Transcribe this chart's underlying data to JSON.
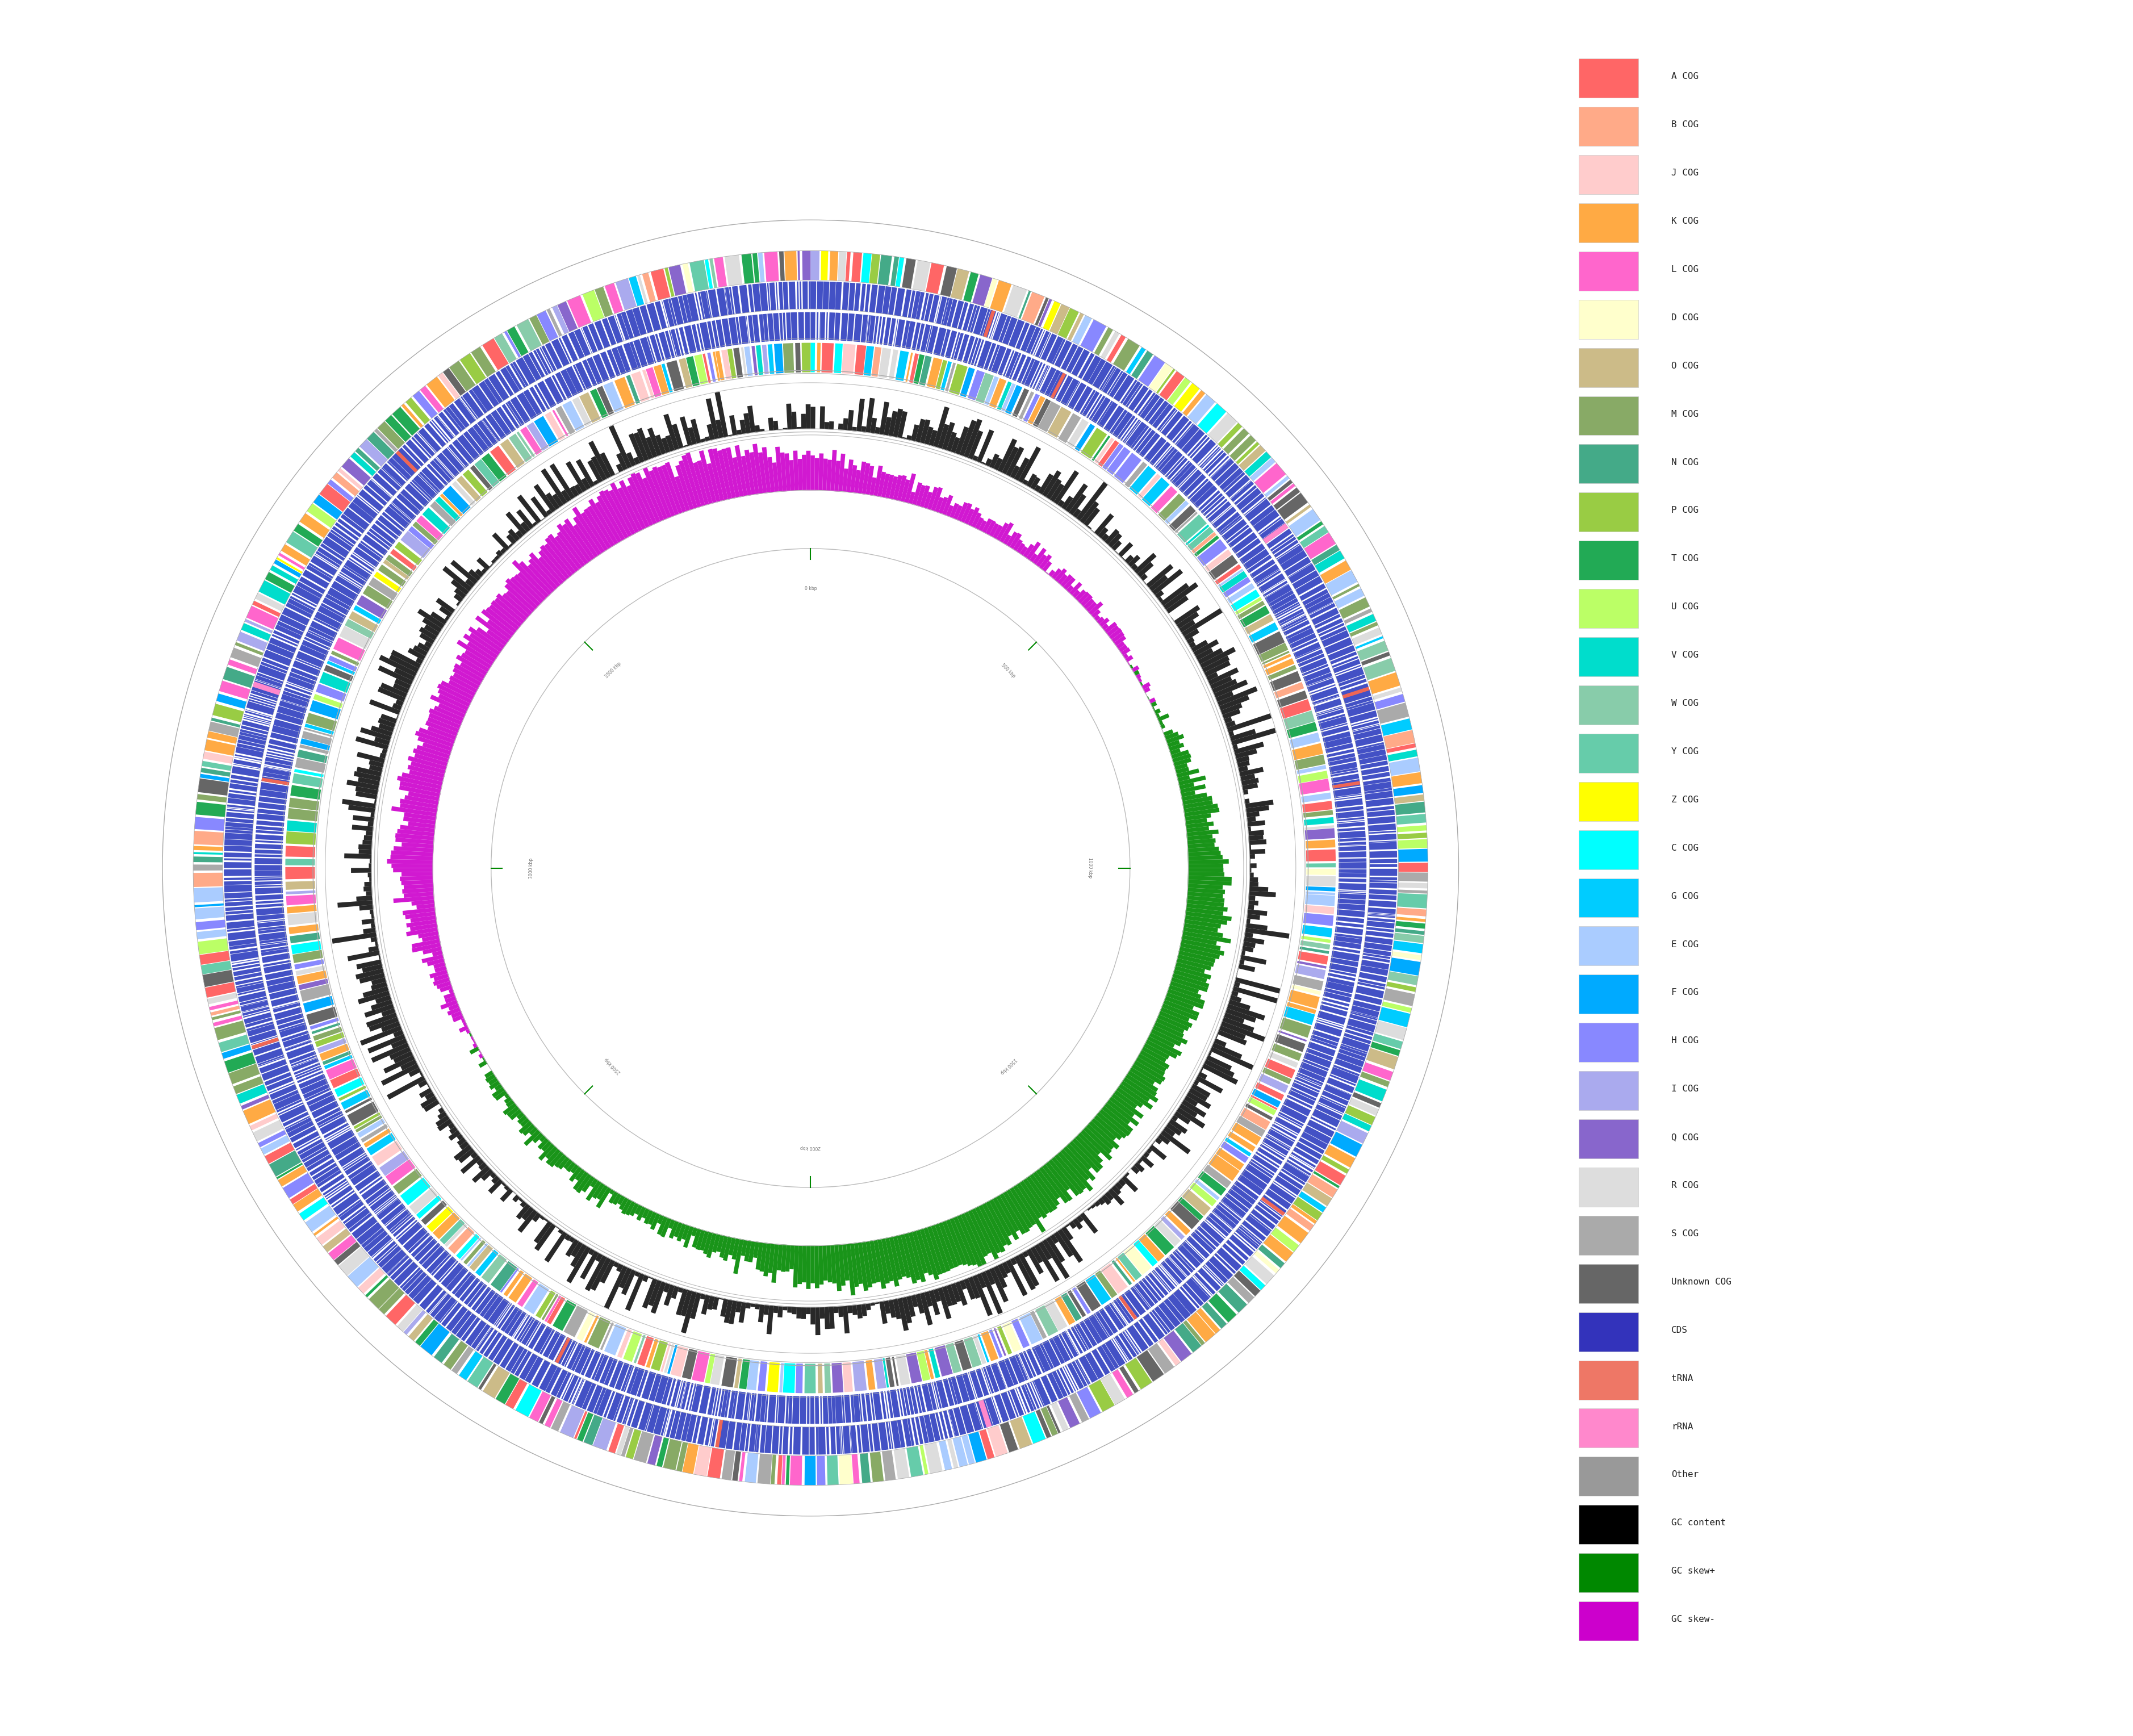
{
  "genome_size": 4000000,
  "figure_size": [
    37.56,
    30.57
  ],
  "background_color": "#ffffff",
  "legend_items": [
    {
      "label": "A COG",
      "color": "#ff6666"
    },
    {
      "label": "B COG",
      "color": "#ffaa88"
    },
    {
      "label": "J COG",
      "color": "#ffcccc"
    },
    {
      "label": "K COG",
      "color": "#ffaa44"
    },
    {
      "label": "L COG",
      "color": "#ff66cc"
    },
    {
      "label": "D COG",
      "color": "#ffffcc"
    },
    {
      "label": "O COG",
      "color": "#ccbb88"
    },
    {
      "label": "M COG",
      "color": "#88aa66"
    },
    {
      "label": "N COG",
      "color": "#44aa88"
    },
    {
      "label": "P COG",
      "color": "#99cc44"
    },
    {
      "label": "T COG",
      "color": "#22aa55"
    },
    {
      "label": "U COG",
      "color": "#bbff66"
    },
    {
      "label": "V COG",
      "color": "#00ddcc"
    },
    {
      "label": "W COG",
      "color": "#88ccaa"
    },
    {
      "label": "Y COG",
      "color": "#66ccaa"
    },
    {
      "label": "Z COG",
      "color": "#ffff00"
    },
    {
      "label": "C COG",
      "color": "#00ffff"
    },
    {
      "label": "G COG",
      "color": "#00ccff"
    },
    {
      "label": "E COG",
      "color": "#aaccff"
    },
    {
      "label": "F COG",
      "color": "#00aaff"
    },
    {
      "label": "H COG",
      "color": "#8888ff"
    },
    {
      "label": "I COG",
      "color": "#aaaaee"
    },
    {
      "label": "Q COG",
      "color": "#8866cc"
    },
    {
      "label": "R COG",
      "color": "#dddddd"
    },
    {
      "label": "S COG",
      "color": "#aaaaaa"
    },
    {
      "label": "Unknown COG",
      "color": "#666666"
    },
    {
      "label": "CDS",
      "color": "#3333bb"
    },
    {
      "label": "tRNA",
      "color": "#ee7766"
    },
    {
      "label": "rRNA",
      "color": "#ff88cc"
    },
    {
      "label": "Other",
      "color": "#999999"
    },
    {
      "label": "GC content",
      "color": "#000000"
    },
    {
      "label": "GC skew+",
      "color": "#008800"
    },
    {
      "label": "GC skew-",
      "color": "#cc00cc"
    }
  ],
  "tick_positions": [
    0,
    500000,
    1000000,
    1500000,
    2000000,
    2500000,
    3000000,
    3500000
  ],
  "tick_labels": [
    "0 kbp",
    "500 kbp",
    "1000 kbp",
    "1500 kbp",
    "2000 kbp",
    "2500 kbp",
    "3000 kbp",
    "3500 kbp"
  ],
  "cog_colors": {
    "A": "#ff6666",
    "B": "#ffaa88",
    "J": "#ffcccc",
    "K": "#ffaa44",
    "L": "#ff66cc",
    "D": "#ffffcc",
    "O": "#ccbb88",
    "M": "#88aa66",
    "N": "#44aa88",
    "P": "#99cc44",
    "T": "#22aa55",
    "U": "#bbff66",
    "V": "#00ddcc",
    "W": "#88ccaa",
    "Y": "#66ccaa",
    "Z": "#ffff00",
    "C": "#00ffff",
    "G": "#00ccff",
    "E": "#aaccff",
    "F": "#00aaff",
    "H": "#8888ff",
    "I": "#aaaaee",
    "Q": "#8866cc",
    "R": "#dddddd",
    "S": "#aaaaaa",
    "Unknown": "#666666"
  },
  "cog_probs": [
    0.08,
    0.03,
    0.05,
    0.07,
    0.04,
    0.02,
    0.04,
    0.06,
    0.04,
    0.04,
    0.05,
    0.03,
    0.04,
    0.02,
    0.03,
    0.01,
    0.03,
    0.04,
    0.05,
    0.03,
    0.04,
    0.03,
    0.03,
    0.06,
    0.05,
    0.06
  ]
}
